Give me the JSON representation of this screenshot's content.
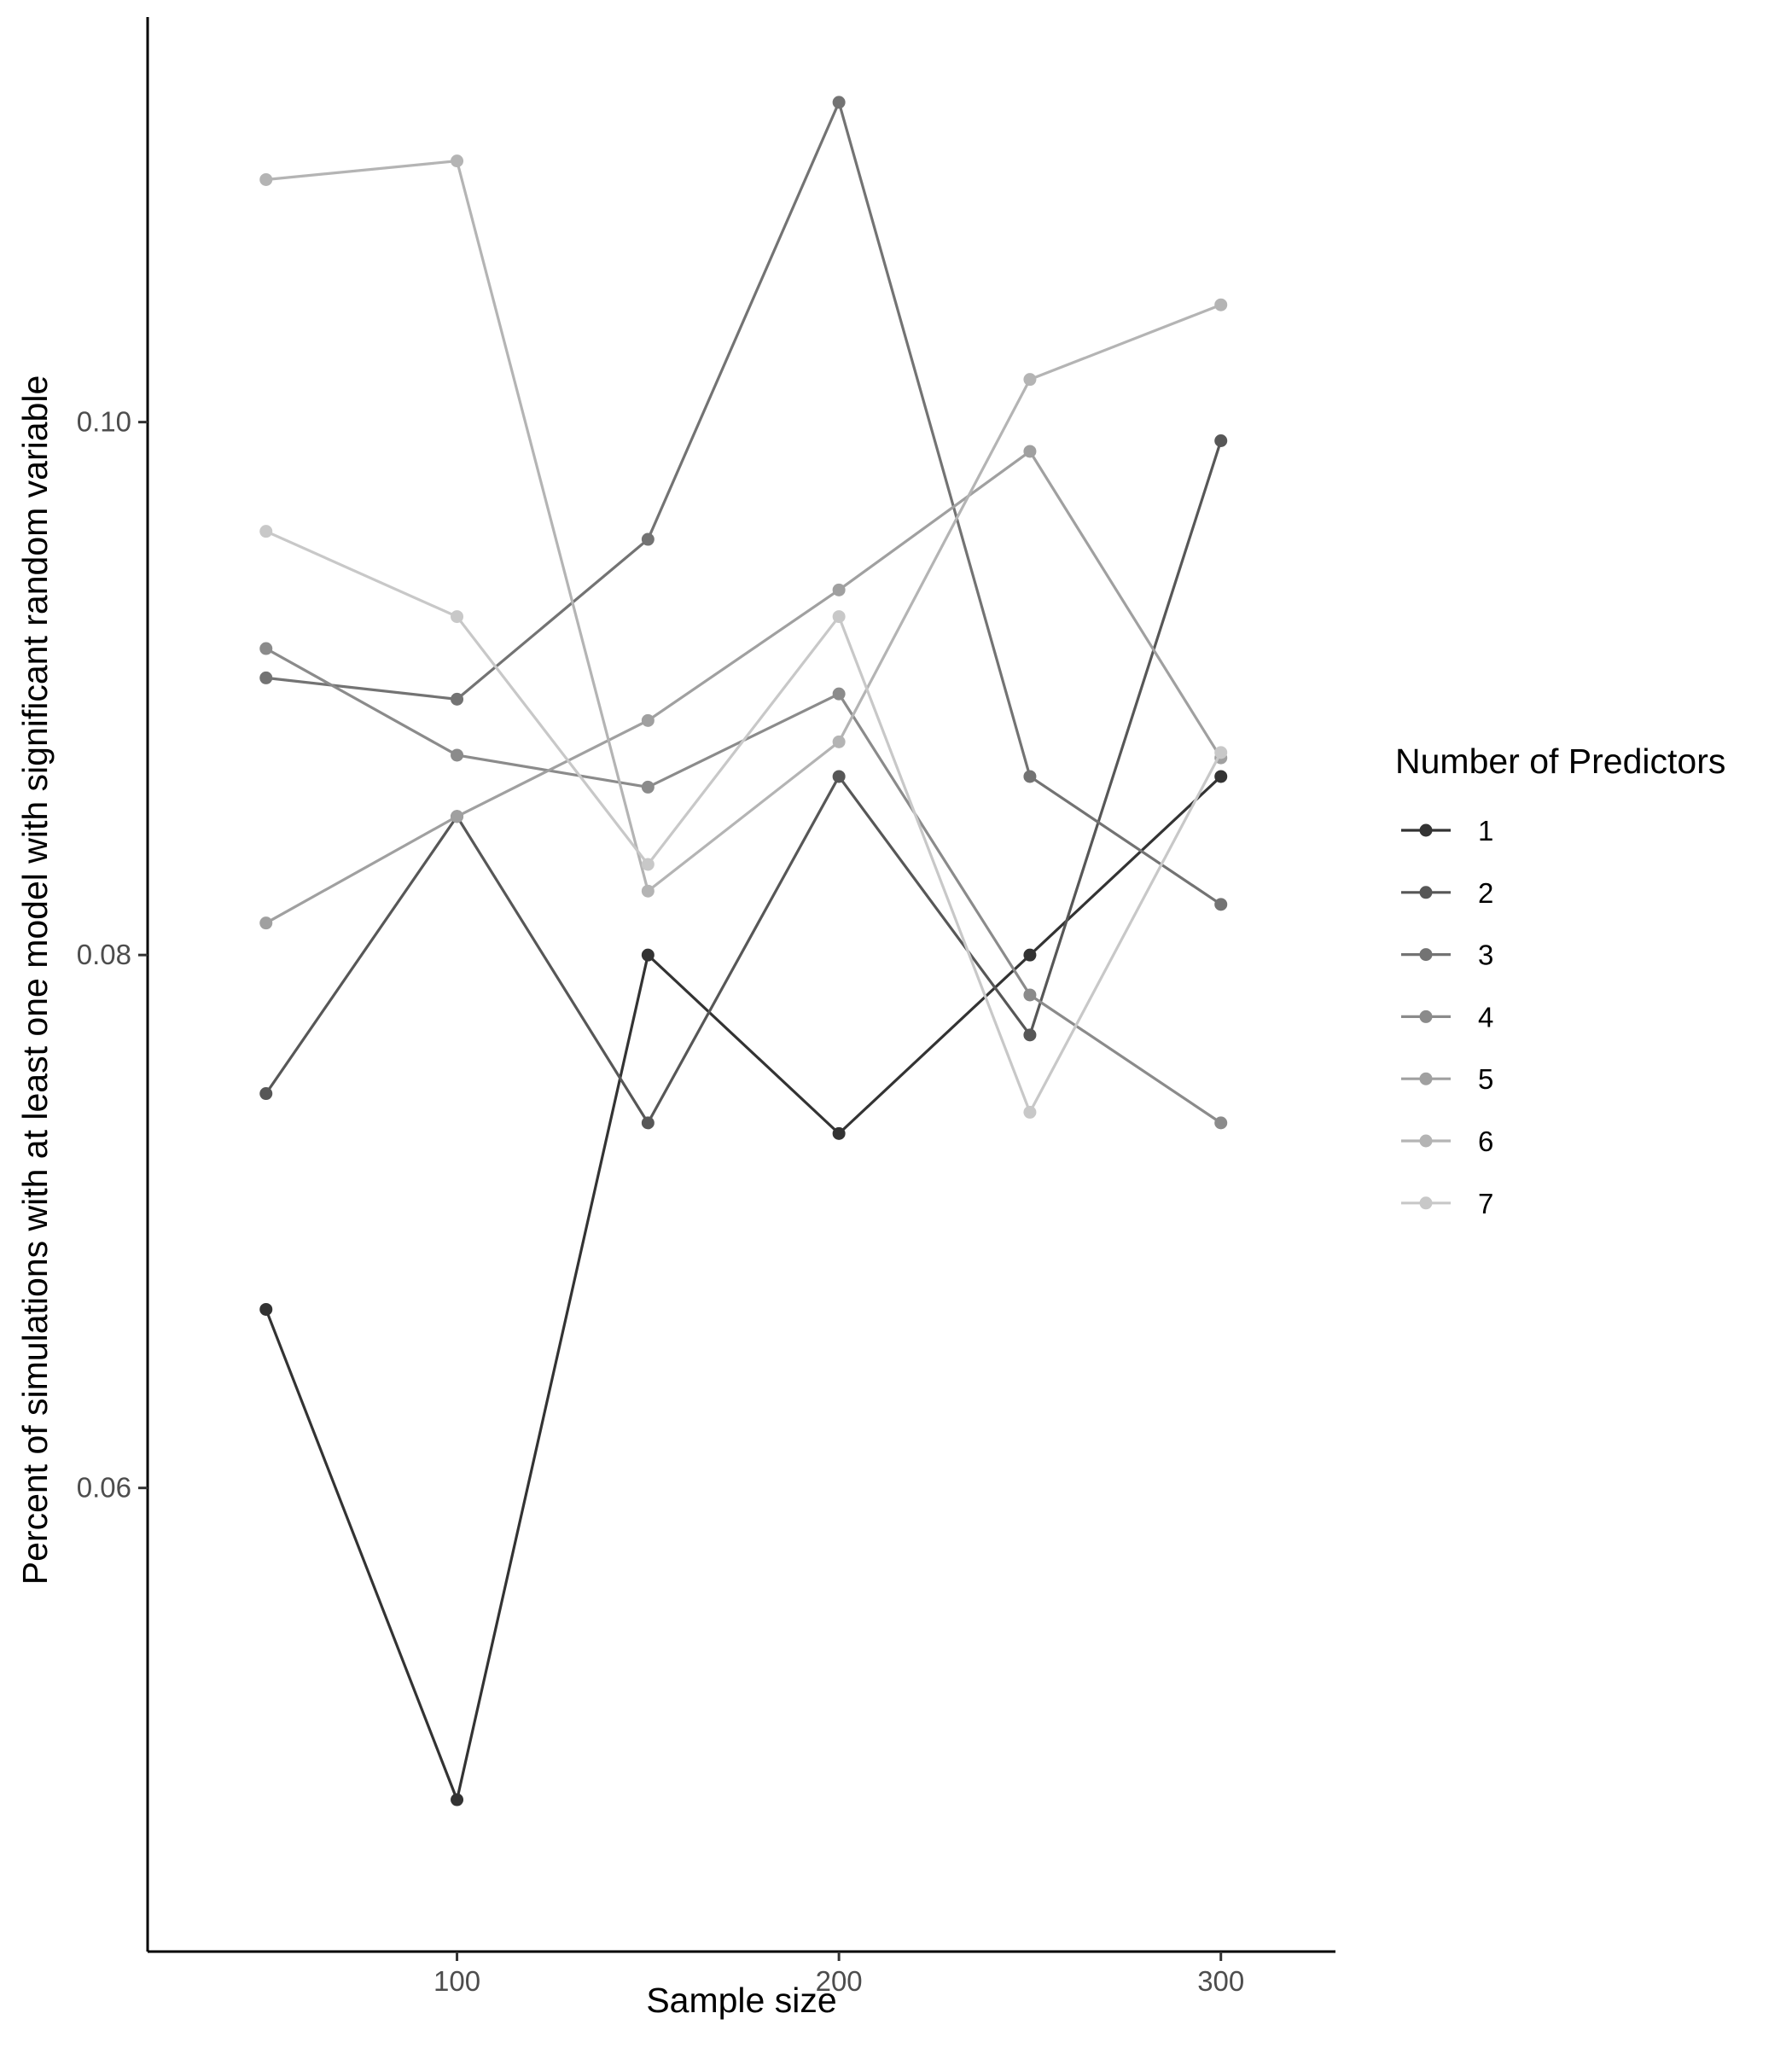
{
  "chart_data": {
    "type": "line",
    "xlabel": "Sample size",
    "ylabel": "Percent of simulations with at least one model with significant random variable",
    "x": [
      50,
      100,
      150,
      200,
      250,
      300
    ],
    "xticks": [
      100,
      200,
      300
    ],
    "yticks": [
      0.06,
      0.08,
      0.1
    ],
    "ytick_labels": [
      "0.06",
      "0.08",
      "0.10"
    ],
    "xlim": [
      19,
      330
    ],
    "ylim": [
      0.0426,
      0.1152
    ],
    "grid": false,
    "legend": {
      "title": "Number of Predictors",
      "position": "right"
    },
    "series": [
      {
        "name": "1",
        "color": "#333333",
        "values": [
          0.0667,
          0.0483,
          0.08,
          0.0733,
          0.08,
          0.0867
        ]
      },
      {
        "name": "2",
        "color": "#575757",
        "values": [
          0.0748,
          0.0852,
          0.0737,
          0.0867,
          0.077,
          0.0993
        ]
      },
      {
        "name": "3",
        "color": "#737373",
        "values": [
          0.0904,
          0.0896,
          0.0956,
          0.112,
          0.0867,
          0.0819
        ]
      },
      {
        "name": "4",
        "color": "#8b8b8b",
        "values": [
          0.0915,
          0.0875,
          0.0863,
          0.0898,
          0.0785,
          0.0737
        ]
      },
      {
        "name": "5",
        "color": "#a0a0a0",
        "values": [
          0.0812,
          0.0852,
          0.0888,
          0.0937,
          0.0989,
          0.0874
        ]
      },
      {
        "name": "6",
        "color": "#b4b4b4",
        "values": [
          0.1091,
          0.1098,
          0.0824,
          0.088,
          0.1016,
          0.1044
        ]
      },
      {
        "name": "7",
        "color": "#c8c8c8",
        "values": [
          0.0959,
          0.0927,
          0.0834,
          0.0927,
          0.0741,
          0.0876
        ]
      }
    ]
  }
}
